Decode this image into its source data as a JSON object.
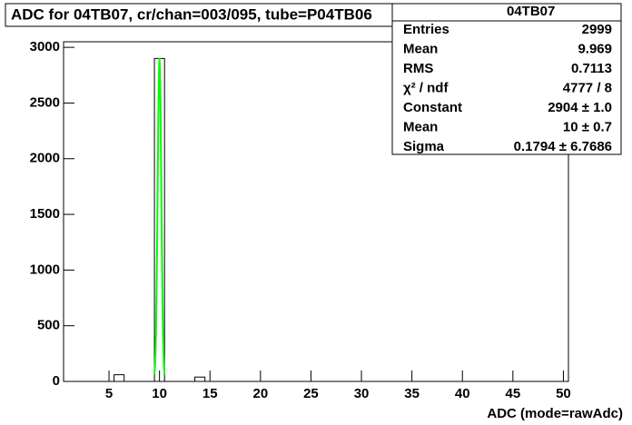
{
  "chart_data": {
    "type": "histogram",
    "title": "ADC for 04TB07,  cr/chan=003/095,  tube=P04TB06",
    "x_label": "ADC (mode=rawAdc)",
    "bins": [
      0.5,
      1.5,
      2.5,
      3.5,
      4.5,
      5.5,
      6.5,
      7.5,
      8.5,
      9.5,
      10.5,
      11.5,
      12.5,
      13.5,
      14.5,
      15.5,
      16.5,
      17.5,
      18.5,
      19.5,
      20.5,
      21.5,
      22.5,
      23.5,
      24.5,
      25.5,
      26.5,
      27.5,
      28.5,
      29.5,
      30.5,
      31.5,
      32.5,
      33.5,
      34.5,
      35.5,
      36.5,
      37.5,
      38.5,
      39.5,
      40.5,
      41.5,
      42.5,
      43.5,
      44.5,
      45.5,
      46.5,
      47.5,
      48.5,
      49.5,
      50.5
    ],
    "values": [
      0,
      0,
      0,
      0,
      0,
      60,
      0,
      0,
      0,
      2900,
      0,
      0,
      0,
      39,
      0,
      0,
      0,
      0,
      0,
      0,
      0,
      0,
      0,
      0,
      0,
      0,
      0,
      0,
      0,
      0,
      0,
      0,
      0,
      0,
      0,
      0,
      0,
      0,
      0,
      0,
      0,
      0,
      0,
      0,
      0,
      0,
      0,
      0,
      0,
      0
    ],
    "color": "#000000",
    "fit": {
      "color": "#00ff00",
      "x": [
        9.5,
        9.55,
        9.6,
        9.65,
        9.7,
        9.75,
        9.8,
        9.85,
        9.9,
        9.95,
        10,
        10.05,
        10.1,
        10.15,
        10.2,
        10.25,
        10.3,
        10.35,
        10.4,
        10.45,
        10.5
      ],
      "values": [
        60,
        125,
        242,
        433,
        717,
        1100,
        1560,
        2046,
        2487,
        2793,
        2904,
        2793,
        2487,
        2046,
        1560,
        1100,
        717,
        433,
        242,
        125,
        60
      ]
    },
    "xlim": [
      0.5,
      50.5
    ],
    "xticks": [
      5,
      10,
      15,
      20,
      25,
      30,
      35,
      40,
      45,
      50
    ],
    "ylim": [
      0,
      3050
    ],
    "yticks": [
      0,
      500,
      1000,
      1500,
      2000,
      2500,
      3000
    ],
    "stats": {
      "name": "04TB07",
      "rows": [
        [
          "Entries",
          "2999"
        ],
        [
          "Mean",
          "9.969"
        ],
        [
          "RMS",
          "0.7113"
        ],
        [
          "χ² / ndf",
          "4777 / 8"
        ],
        [
          "Constant",
          "2904 ± 1.0"
        ],
        [
          "Mean",
          "10 ± 0.7"
        ],
        [
          "Sigma",
          "0.1794 ± 6.7686"
        ]
      ]
    }
  }
}
